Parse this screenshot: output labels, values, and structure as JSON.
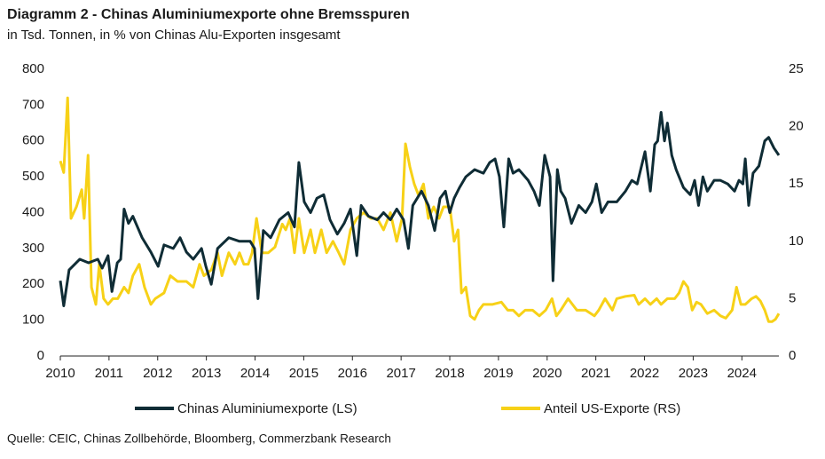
{
  "chart_data": {
    "type": "line",
    "title": "Diagramm 2 - Chinas Aluminiumexporte ohne Bremsspuren",
    "subtitle": "in Tsd. Tonnen, in % von Chinas Alu-Exporten insgesamt",
    "source": "Quelle: CEIC, Chinas Zollbehörde, Bloomberg, Commerzbank Research",
    "xlim": [
      2010,
      2024.76
    ],
    "xticks": [
      2010,
      2011,
      2012,
      2013,
      2014,
      2015,
      2016,
      2017,
      2018,
      2019,
      2020,
      2021,
      2022,
      2023,
      2024
    ],
    "ylim": [
      0,
      800
    ],
    "yticks": [
      0,
      100,
      200,
      300,
      400,
      500,
      600,
      700,
      800
    ],
    "y2lim": [
      0,
      25
    ],
    "y2ticks": [
      0,
      5,
      10,
      15,
      20,
      25
    ],
    "legend": "bottom",
    "series": [
      {
        "name": "Chinas Aluminiumexporte (LS)",
        "color": "#0f2c35",
        "axis": "y",
        "x": [
          2010.0,
          2010.07,
          2010.18,
          2010.4,
          2010.58,
          2010.77,
          2010.86,
          2010.98,
          2011.06,
          2011.17,
          2011.24,
          2011.31,
          2011.4,
          2011.49,
          2011.68,
          2011.86,
          2012.01,
          2012.13,
          2012.32,
          2012.46,
          2012.59,
          2012.73,
          2012.9,
          2012.99,
          2013.1,
          2013.23,
          2013.46,
          2013.68,
          2013.9,
          2013.99,
          2014.06,
          2014.17,
          2014.32,
          2014.5,
          2014.68,
          2014.81,
          2014.9,
          2015.01,
          2015.14,
          2015.27,
          2015.41,
          2015.54,
          2015.69,
          2015.83,
          2015.96,
          2016.09,
          2016.18,
          2016.33,
          2016.51,
          2016.64,
          2016.78,
          2016.91,
          2017.05,
          2017.15,
          2017.24,
          2017.42,
          2017.56,
          2017.69,
          2017.8,
          2017.91,
          2018.0,
          2018.09,
          2018.2,
          2018.33,
          2018.51,
          2018.69,
          2018.82,
          2018.93,
          2019.02,
          2019.11,
          2019.21,
          2019.3,
          2019.42,
          2019.61,
          2019.73,
          2019.84,
          2019.95,
          2020.06,
          2020.12,
          2020.21,
          2020.28,
          2020.37,
          2020.5,
          2020.65,
          2020.79,
          2020.92,
          2021.01,
          2021.12,
          2021.25,
          2021.43,
          2021.61,
          2021.74,
          2021.85,
          2022.01,
          2022.12,
          2022.21,
          2022.27,
          2022.34,
          2022.41,
          2022.47,
          2022.56,
          2022.65,
          2022.8,
          2022.94,
          2023.03,
          2023.11,
          2023.2,
          2023.29,
          2023.43,
          2023.56,
          2023.71,
          2023.85,
          2023.94,
          2024.02,
          2024.07,
          2024.14,
          2024.23,
          2024.35,
          2024.47,
          2024.55,
          2024.66,
          2024.76
        ],
        "values": [
          210,
          140,
          240,
          270,
          260,
          270,
          245,
          280,
          180,
          260,
          270,
          410,
          370,
          390,
          330,
          290,
          250,
          310,
          300,
          330,
          290,
          270,
          300,
          250,
          200,
          300,
          330,
          320,
          320,
          300,
          160,
          350,
          330,
          380,
          400,
          360,
          540,
          430,
          400,
          440,
          450,
          380,
          340,
          370,
          410,
          280,
          420,
          390,
          380,
          400,
          380,
          410,
          380,
          300,
          420,
          460,
          420,
          350,
          440,
          460,
          400,
          440,
          470,
          500,
          520,
          510,
          540,
          550,
          500,
          360,
          550,
          510,
          520,
          490,
          460,
          420,
          560,
          500,
          210,
          520,
          460,
          440,
          370,
          420,
          400,
          430,
          480,
          400,
          430,
          430,
          460,
          490,
          480,
          570,
          460,
          590,
          600,
          680,
          600,
          650,
          560,
          520,
          470,
          450,
          490,
          420,
          500,
          460,
          490,
          490,
          480,
          460,
          490,
          480,
          550,
          420,
          510,
          530,
          600,
          610,
          580,
          560
        ]
      },
      {
        "name": "Anteil US-Exporte (RS)",
        "color": "#f7d117",
        "axis": "y2",
        "x": [
          2010.0,
          2010.07,
          2010.15,
          2010.22,
          2010.33,
          2010.44,
          2010.49,
          2010.57,
          2010.64,
          2010.73,
          2010.8,
          2010.89,
          2010.98,
          2011.08,
          2011.18,
          2011.31,
          2011.4,
          2011.49,
          2011.62,
          2011.73,
          2011.86,
          2011.95,
          2012.13,
          2012.26,
          2012.41,
          2012.59,
          2012.73,
          2012.86,
          2012.95,
          2013.1,
          2013.23,
          2013.32,
          2013.46,
          2013.59,
          2013.68,
          2013.77,
          2013.86,
          2013.94,
          2014.03,
          2014.14,
          2014.27,
          2014.41,
          2014.56,
          2014.63,
          2014.72,
          2014.81,
          2014.9,
          2015.01,
          2015.14,
          2015.23,
          2015.36,
          2015.47,
          2015.6,
          2015.72,
          2015.83,
          2015.96,
          2016.09,
          2016.23,
          2016.38,
          2016.51,
          2016.64,
          2016.78,
          2016.91,
          2017.02,
          2017.09,
          2017.18,
          2017.27,
          2017.36,
          2017.46,
          2017.56,
          2017.67,
          2017.78,
          2017.87,
          2018.0,
          2018.09,
          2018.17,
          2018.24,
          2018.33,
          2018.42,
          2018.51,
          2018.6,
          2018.69,
          2018.88,
          2019.06,
          2019.19,
          2019.3,
          2019.42,
          2019.55,
          2019.7,
          2019.84,
          2019.97,
          2020.1,
          2020.19,
          2020.28,
          2020.43,
          2020.52,
          2020.61,
          2020.79,
          2020.97,
          2021.06,
          2021.19,
          2021.34,
          2021.43,
          2021.61,
          2021.79,
          2021.88,
          2022.01,
          2022.12,
          2022.25,
          2022.34,
          2022.47,
          2022.62,
          2022.71,
          2022.8,
          2022.89,
          2022.98,
          2023.07,
          2023.16,
          2023.29,
          2023.43,
          2023.56,
          2023.67,
          2023.8,
          2023.89,
          2023.98,
          2024.07,
          2024.2,
          2024.29,
          2024.38,
          2024.47,
          2024.55,
          2024.62,
          2024.69,
          2024.76
        ],
        "values": [
          17,
          16,
          22.5,
          12,
          13,
          14.5,
          12,
          17.5,
          6,
          4.5,
          8,
          5,
          4.5,
          5,
          5,
          6,
          5.5,
          7,
          8,
          6,
          4.5,
          5,
          5.5,
          7,
          6.5,
          6.5,
          6,
          8,
          7,
          7.5,
          9,
          7,
          9,
          8,
          9,
          8,
          8,
          9,
          12,
          9,
          9,
          9.5,
          11.5,
          11,
          12,
          9,
          12,
          9,
          11,
          9,
          11,
          9,
          10,
          9,
          8,
          11,
          12,
          12.5,
          12,
          12,
          11,
          12.5,
          10,
          12,
          18.5,
          16.5,
          15,
          14,
          15,
          12,
          13,
          12,
          13,
          13,
          10,
          11,
          5.5,
          6,
          3.5,
          3.2,
          4,
          4.5,
          4.5,
          4.7,
          4,
          4,
          3.5,
          4,
          4,
          3.5,
          4,
          5,
          3.5,
          4,
          5,
          4.5,
          4,
          4,
          3.5,
          4,
          5,
          4,
          5,
          5.2,
          5.3,
          4.5,
          5,
          4.5,
          5,
          4.5,
          5,
          5,
          5.5,
          6.5,
          6,
          4,
          4.7,
          4.5,
          3.7,
          4,
          3.5,
          3.3,
          4,
          6,
          4.5,
          4.5,
          5,
          5.2,
          4.8,
          4,
          3,
          3,
          3.2,
          3.7
        ]
      }
    ]
  }
}
